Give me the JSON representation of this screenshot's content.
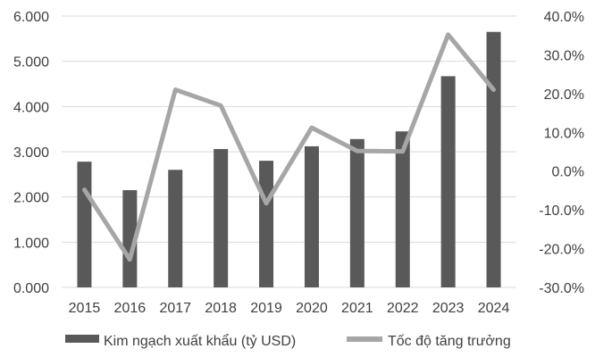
{
  "chart_data": {
    "type": "bar+line",
    "categories": [
      "2015",
      "2016",
      "2017",
      "2018",
      "2019",
      "2020",
      "2021",
      "2022",
      "2023",
      "2024"
    ],
    "series": [
      {
        "name": "Kim ngạch xuất khẩu (tỷ USD)",
        "type": "bar",
        "axis": "left",
        "values": [
          2780,
          2150,
          2600,
          3060,
          2800,
          3120,
          3280,
          3450,
          4670,
          5650
        ]
      },
      {
        "name": "Tốc độ tăng trưởng",
        "type": "line",
        "axis": "right",
        "values": [
          -4.8,
          -22.8,
          21.0,
          16.9,
          -8.3,
          11.2,
          5.2,
          5.1,
          35.2,
          21.0
        ]
      }
    ],
    "y_left": {
      "lim": [
        0,
        6000
      ],
      "ticks": [
        0,
        1000,
        2000,
        3000,
        4000,
        5000,
        6000
      ],
      "tick_labels": [
        "0.000",
        "1.000",
        "2.000",
        "3.000",
        "4.000",
        "5.000",
        "6.000"
      ]
    },
    "y_right": {
      "lim": [
        -30,
        40
      ],
      "ticks": [
        -30,
        -20,
        -10,
        0,
        10,
        20,
        30,
        40
      ],
      "tick_labels": [
        "-30.0%",
        "-20.0%",
        "-10.0%",
        "0.0%",
        "10.0%",
        "20.0%",
        "30.0%",
        "40.0%"
      ]
    },
    "grid": true,
    "legend": "bottom",
    "colors": {
      "bar": "#595959",
      "line": "#a6a6a6",
      "grid": "#d9d9d9",
      "text": "#404040"
    }
  }
}
